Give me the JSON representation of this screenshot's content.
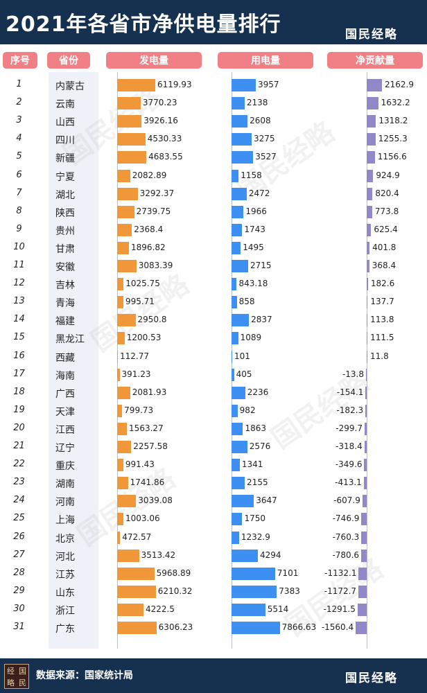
{
  "title": "2021年各省市净供电量排行",
  "brand": "国民经略",
  "logo_chars": [
    "经",
    "国",
    "略",
    "民"
  ],
  "footer": {
    "source": "数据来源：国家统计局"
  },
  "colors": {
    "header_bg": "#16304f",
    "column_header": "#f07f86",
    "generation": "#f0973a",
    "consumption": "#3d8ff2",
    "net": "#9188c9"
  },
  "chart_data": {
    "type": "bar",
    "title": "2021年各省市净供电量排行",
    "columns": [
      "序号",
      "省份",
      "发电量",
      "用电量",
      "净贡献量"
    ],
    "ranks": [
      1,
      2,
      3,
      4,
      5,
      6,
      7,
      8,
      9,
      10,
      11,
      12,
      13,
      14,
      15,
      16,
      17,
      18,
      19,
      20,
      21,
      22,
      23,
      24,
      25,
      26,
      27,
      28,
      29,
      30,
      31
    ],
    "categories": [
      "内蒙古",
      "云南",
      "山西",
      "四川",
      "新疆",
      "宁夏",
      "湖北",
      "陕西",
      "贵州",
      "甘肃",
      "安徽",
      "吉林",
      "青海",
      "福建",
      "黑龙江",
      "西藏",
      "海南",
      "广西",
      "天津",
      "江西",
      "辽宁",
      "重庆",
      "湖南",
      "河南",
      "上海",
      "北京",
      "河北",
      "江苏",
      "山东",
      "浙江",
      "广东"
    ],
    "series": [
      {
        "name": "发电量",
        "values": [
          6119.93,
          3770.23,
          3926.16,
          4530.33,
          4683.55,
          2082.89,
          3292.37,
          2739.75,
          2368.4,
          1896.82,
          3083.39,
          1025.75,
          995.71,
          2950.8,
          1200.53,
          112.77,
          391.23,
          2081.93,
          799.73,
          1563.27,
          2257.58,
          991.43,
          1741.86,
          3039.08,
          1003.06,
          472.57,
          3513.42,
          5968.89,
          6210.32,
          4222.5,
          6306.23
        ]
      },
      {
        "name": "用电量",
        "values": [
          3957,
          2138,
          2608,
          3275,
          3527,
          1158,
          2472,
          1966,
          1743,
          1495,
          2715,
          843.18,
          858,
          2837,
          1089,
          101,
          405,
          2236,
          982,
          1863,
          2576,
          1341,
          2155,
          3647,
          1750,
          1232.9,
          4294,
          7101,
          7383,
          5514,
          7866.63
        ]
      },
      {
        "name": "净贡献量",
        "values": [
          2162.9,
          1632.2,
          1318.2,
          1255.3,
          1156.6,
          924.9,
          820.4,
          773.8,
          625.4,
          401.8,
          368.4,
          182.6,
          137.7,
          113.8,
          111.5,
          11.8,
          -13.8,
          -154.1,
          -182.3,
          -299.7,
          -318.4,
          -349.6,
          -413.1,
          -607.9,
          -746.9,
          -760.3,
          -780.6,
          -1132.1,
          -1172.7,
          -1291.5,
          -1560.4
        ]
      }
    ]
  }
}
